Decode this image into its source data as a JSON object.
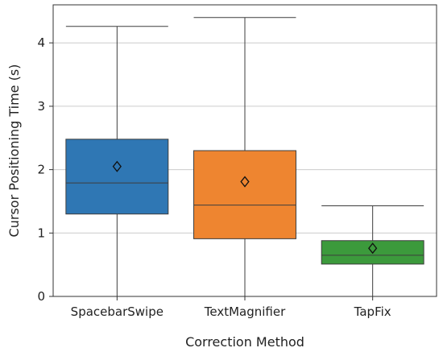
{
  "chart_data": {
    "type": "box",
    "title": "",
    "xlabel": "Correction Method",
    "ylabel": "Cursor Positioning Time (s)",
    "ylim": [
      0,
      4.6
    ],
    "yticks": [
      0,
      1,
      2,
      3,
      4
    ],
    "grid": "horizontal",
    "legend": "none",
    "categories": [
      "SpacebarSwipe",
      "TextMagnifier",
      "TapFix"
    ],
    "boxes": [
      {
        "category": "SpacebarSwipe",
        "whisker_low": 0.0,
        "q1": 1.3,
        "median": 1.79,
        "q3": 2.48,
        "whisker_high": 4.26,
        "mean": 2.05,
        "color": "#2f77b4"
      },
      {
        "category": "TextMagnifier",
        "whisker_low": 0.0,
        "q1": 0.91,
        "median": 1.44,
        "q3": 2.3,
        "whisker_high": 4.4,
        "mean": 1.81,
        "color": "#ee8530"
      },
      {
        "category": "TapFix",
        "whisker_low": 0.0,
        "q1": 0.51,
        "median": 0.65,
        "q3": 0.88,
        "whisker_high": 1.43,
        "mean": 0.76,
        "color": "#3c9a3c"
      }
    ]
  }
}
